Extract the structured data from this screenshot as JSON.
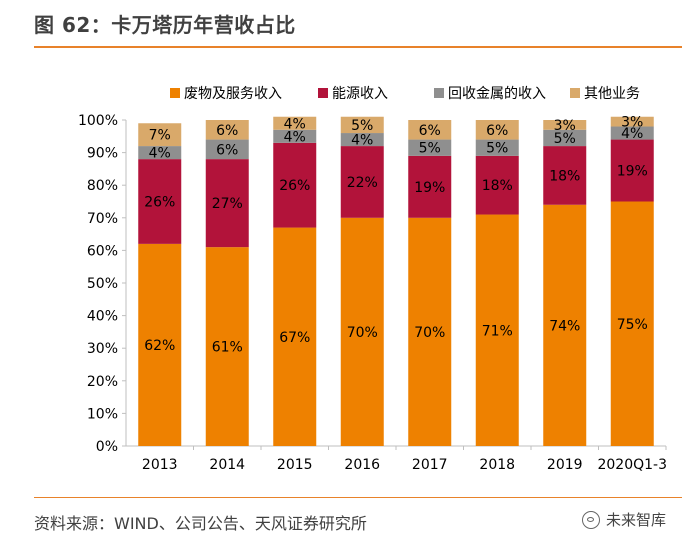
{
  "figure": {
    "title": "图 62：卡万塔历年营收占比",
    "source": "资料来源：WIND、公司公告、天风证券研究所",
    "watermark": "未来智库"
  },
  "chart_data": {
    "type": "bar",
    "stacked": true,
    "categories": [
      "2013",
      "2014",
      "2015",
      "2016",
      "2017",
      "2018",
      "2019",
      "2020Q1-3"
    ],
    "series": [
      {
        "name": "废物及服务收入",
        "color": "#EE8100",
        "values": [
          62,
          61,
          67,
          70,
          70,
          71,
          74,
          75
        ]
      },
      {
        "name": "能源收入",
        "color": "#B2133A",
        "values": [
          26,
          27,
          26,
          22,
          19,
          18,
          18,
          19
        ]
      },
      {
        "name": "回收金属的收入",
        "color": "#8F8F8F",
        "values": [
          4,
          6,
          4,
          4,
          5,
          5,
          5,
          4
        ]
      },
      {
        "name": "其他业务",
        "color": "#D9A96A",
        "values": [
          7,
          6,
          4,
          5,
          6,
          6,
          3,
          3
        ]
      }
    ],
    "y_ticks": [
      "0%",
      "10%",
      "20%",
      "30%",
      "40%",
      "50%",
      "60%",
      "70%",
      "80%",
      "90%",
      "100%"
    ],
    "ylim": [
      0,
      100
    ],
    "y_unit": "%",
    "legend_position": "top",
    "grid": false
  }
}
